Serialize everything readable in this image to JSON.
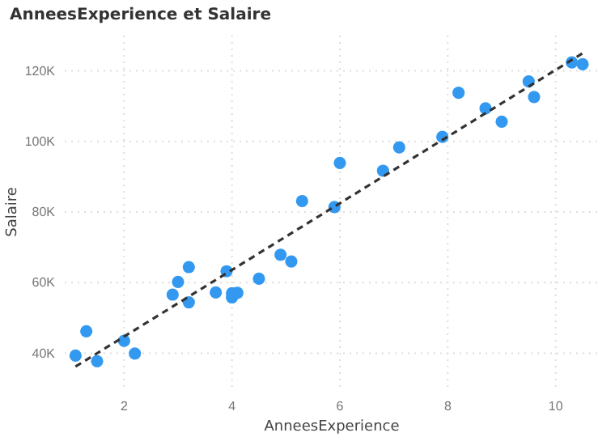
{
  "chart_data": {
    "type": "scatter",
    "title": "AnneesExperience et Salaire",
    "xlabel": "AnneesExperience",
    "ylabel": "Salaire",
    "xlim": [
      0.9,
      10.8
    ],
    "xticks": [
      2,
      4,
      6,
      8,
      10
    ],
    "ylim": [
      30000,
      130000
    ],
    "yticks": [
      {
        "value": 40000,
        "label": "40K"
      },
      {
        "value": 60000,
        "label": "60K"
      },
      {
        "value": 80000,
        "label": "80K"
      },
      {
        "value": 100000,
        "label": "100K"
      },
      {
        "value": 120000,
        "label": "120K"
      }
    ],
    "grid": true,
    "marker": "circle",
    "series": [
      {
        "color": "#3399f0",
        "x": [
          1.1,
          1.3,
          1.5,
          2.0,
          2.2,
          2.9,
          3.0,
          3.2,
          3.2,
          3.7,
          3.9,
          4.0,
          4.0,
          4.1,
          4.5,
          4.9,
          5.1,
          5.3,
          5.9,
          6.0,
          6.8,
          7.1,
          7.9,
          8.2,
          8.7,
          9.0,
          9.5,
          9.6,
          10.3,
          10.5
        ],
        "values": [
          39300,
          46200,
          37700,
          43500,
          39900,
          56600,
          60200,
          54400,
          64400,
          57200,
          63200,
          55800,
          57000,
          57100,
          61100,
          67900,
          66000,
          83100,
          81400,
          93900,
          91700,
          98300,
          101300,
          113800,
          109400,
          105600,
          117000,
          112600,
          122400,
          121900
        ]
      },
      {
        "type": "line",
        "color": "#333333",
        "line_style": "dashed",
        "marker": "none",
        "x": [
          1.1,
          10.5
        ],
        "values": [
          36200,
          125000
        ]
      }
    ]
  }
}
